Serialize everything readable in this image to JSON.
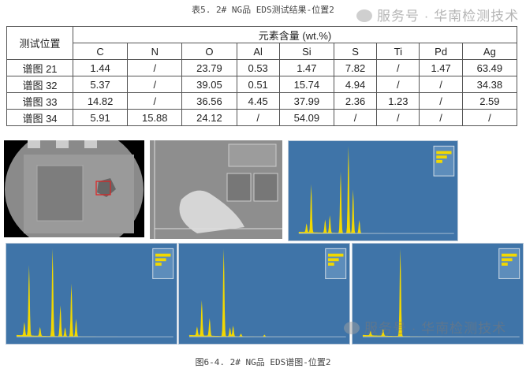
{
  "table": {
    "caption": "表5. 2# NG品 EDS测试结果-位置2",
    "row_header": "测试位置",
    "group_header": "元素含量 (wt.%)",
    "columns": [
      "C",
      "N",
      "O",
      "Al",
      "Si",
      "S",
      "Ti",
      "Pd",
      "Ag"
    ],
    "rows": [
      {
        "label": "谱图 21",
        "values": [
          "1.44",
          "/",
          "23.79",
          "0.53",
          "1.47",
          "7.82",
          "/",
          "1.47",
          "63.49"
        ]
      },
      {
        "label": "谱图 32",
        "values": [
          "5.37",
          "/",
          "39.05",
          "0.51",
          "15.74",
          "4.94",
          "/",
          "/",
          "34.38"
        ]
      },
      {
        "label": "谱图 33",
        "values": [
          "14.82",
          "/",
          "36.56",
          "4.45",
          "37.99",
          "2.36",
          "1.23",
          "/",
          "2.59"
        ]
      },
      {
        "label": "谱图 34",
        "values": [
          "5.91",
          "15.88",
          "24.12",
          "/",
          "54.09",
          "/",
          "/",
          "/",
          "/"
        ]
      }
    ]
  },
  "watermark": "服务号 · 华南检测技术",
  "figure": {
    "caption": "图6-4. 2# NG品 EDS谱图-位置2",
    "colors": {
      "spectrum_bg": "#3f74a8",
      "spectrum_fill": "#f2d800",
      "marker": "#e02020"
    }
  }
}
